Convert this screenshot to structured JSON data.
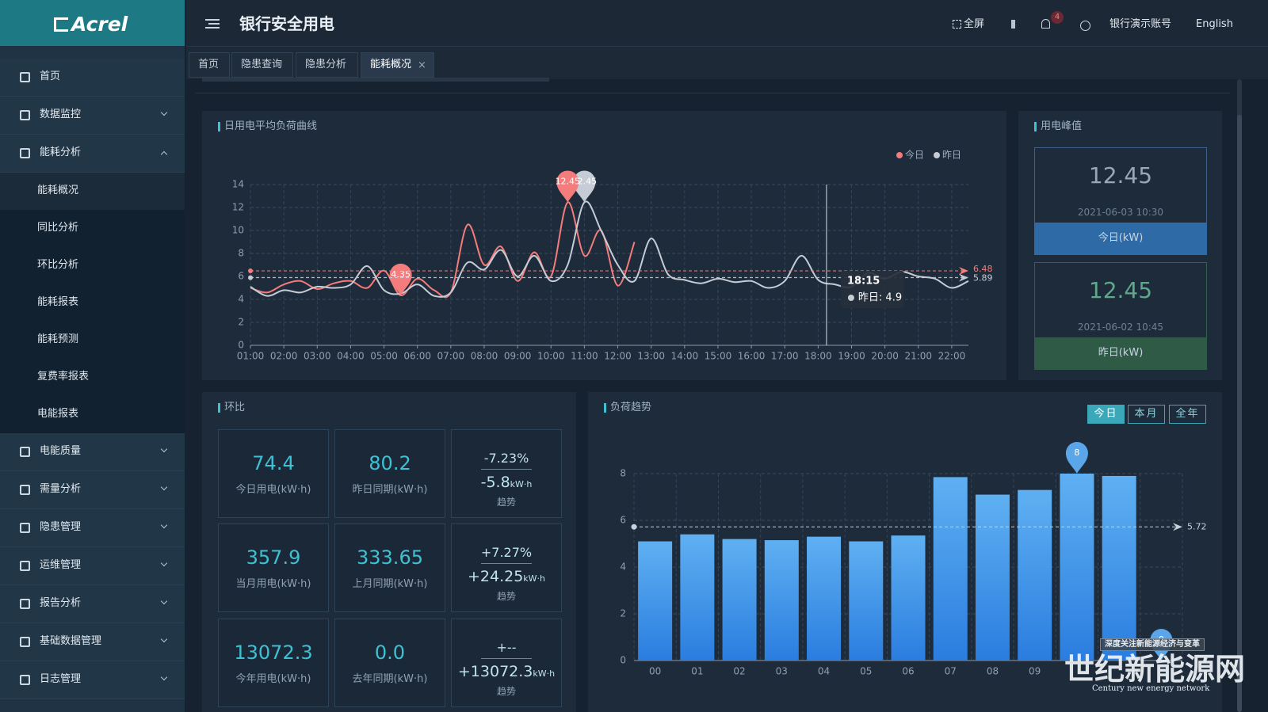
{
  "sidebar": {
    "logo": "Acrel",
    "menu": [
      {
        "label": "首页"
      },
      {
        "label": "数据监控"
      },
      {
        "label": "能耗分析",
        "children": [
          "能耗概况",
          "同比分析",
          "环比分析",
          "能耗报表",
          "能耗预测",
          "复费率报表",
          "电能报表"
        ]
      },
      {
        "label": "电能质量"
      },
      {
        "label": "需量分析"
      },
      {
        "label": "隐患管理"
      },
      {
        "label": "运维管理"
      },
      {
        "label": "报告分析"
      },
      {
        "label": "基础数据管理"
      },
      {
        "label": "日志管理"
      }
    ]
  },
  "header": {
    "title": "银行安全用电",
    "fullscreen": "全屏",
    "badge": "4",
    "account": "银行演示账号",
    "language": "English"
  },
  "tabs": [
    "首页",
    "隐患查询",
    "隐患分析",
    "能耗概况"
  ],
  "peak": {
    "title": "用电峰值",
    "items": [
      {
        "value": 12.45,
        "time": "2021-06-03 10:30",
        "label": "今日(kW)"
      },
      {
        "value": 12.45,
        "time": "2021-06-02 10:45",
        "label": "昨日(kW)"
      }
    ]
  },
  "ratio": {
    "title": "环比",
    "rows": [
      [
        {
          "value": "74.4",
          "label": "今日用电(kW·h)"
        },
        {
          "value": "80.2",
          "label": "昨日同期(kW·h)"
        },
        {
          "percent": "-7.23%",
          "diff": "-5.8",
          "unit": "kW·h",
          "label": "趋势"
        }
      ],
      [
        {
          "value": "357.9",
          "label": "当月用电(kW·h)"
        },
        {
          "value": "333.65",
          "label": "上月同期(kW·h)"
        },
        {
          "percent": "+7.27%",
          "diff": "+24.25",
          "unit": "kW·h",
          "label": "趋势"
        }
      ],
      [
        {
          "value": "13072.3",
          "label": "今年用电(kW·h)"
        },
        {
          "value": "0.0",
          "label": "去年同期(kW·h)"
        },
        {
          "percent": "+--",
          "diff": "+13072.3",
          "unit": "kW·h",
          "label": "趋势"
        }
      ]
    ]
  },
  "watermark": {
    "title": "世纪新能源网",
    "subtitle": "Century new energy network",
    "banner": "深度关注新能源经济与变革"
  },
  "chart_data": [
    {
      "type": "line",
      "title": "日用电平均负荷曲线",
      "x": [
        1,
        1.5,
        2,
        2.5,
        3,
        3.5,
        4,
        4.5,
        5,
        5.5,
        6,
        6.5,
        7,
        7.5,
        8,
        8.5,
        9,
        9.5,
        10,
        10.5,
        11,
        11.5,
        12,
        12.5,
        13,
        13.5,
        14,
        14.5,
        15,
        15.5,
        16,
        16.5,
        17,
        17.5,
        18,
        18.5,
        19,
        19.5,
        20,
        20.5,
        21,
        21.5,
        22,
        22.5
      ],
      "xlim": [
        1,
        22.5
      ],
      "xticks": [
        {
          "value": 1,
          "label": "01:00"
        },
        {
          "value": 2,
          "label": "02:00"
        },
        {
          "value": 3,
          "label": "03:00"
        },
        {
          "value": 4,
          "label": "04:00"
        },
        {
          "value": 5,
          "label": "05:00"
        },
        {
          "value": 6,
          "label": "06:00"
        },
        {
          "value": 7,
          "label": "07:00"
        },
        {
          "value": 8,
          "label": "08:00"
        },
        {
          "value": 9,
          "label": "09:00"
        },
        {
          "value": 10,
          "label": "10:00"
        },
        {
          "value": 11,
          "label": "11:00"
        },
        {
          "value": 12,
          "label": "12:00"
        },
        {
          "value": 13,
          "label": "13:00"
        },
        {
          "value": 14,
          "label": "14:00"
        },
        {
          "value": 15,
          "label": "15:00"
        },
        {
          "value": 16,
          "label": "16:00"
        },
        {
          "value": 17,
          "label": "17:00"
        },
        {
          "value": 18,
          "label": "18:00"
        },
        {
          "value": 19,
          "label": "19:00"
        },
        {
          "value": 20,
          "label": "20:00"
        },
        {
          "value": 21,
          "label": "21:00"
        },
        {
          "value": 22,
          "label": "22:00"
        }
      ],
      "ylim": [
        0,
        14
      ],
      "yticks": [
        0,
        2,
        4,
        6,
        8,
        10,
        12,
        14
      ],
      "grid": true,
      "legend": "top-right",
      "series": [
        {
          "name": "今日",
          "color": "#f47c7c",
          "average": 6.48,
          "markpoints": [
            "max",
            "min"
          ],
          "values": [
            5.0,
            4.6,
            5.3,
            5.6,
            4.9,
            5.4,
            5.6,
            5.0,
            6.5,
            4.35,
            5.8,
            4.8,
            4.6,
            10.5,
            7.0,
            8.6,
            5.6,
            8.1,
            6.0,
            12.45,
            7.8,
            10.0,
            5.2,
            9.0,
            null,
            null,
            null,
            null,
            null,
            null,
            null,
            null,
            null,
            null,
            null,
            null,
            null,
            null,
            null,
            null,
            null,
            null,
            null,
            null
          ]
        },
        {
          "name": "昨日",
          "color": "#c5ccd6",
          "average": 5.89,
          "markpoints": [
            "max"
          ],
          "values": [
            5.1,
            4.3,
            4.8,
            4.6,
            5.1,
            5.0,
            5.3,
            6.9,
            4.8,
            4.5,
            5.3,
            4.3,
            4.6,
            7.2,
            6.6,
            8.3,
            6.0,
            7.8,
            5.6,
            7.0,
            12.45,
            10.0,
            7.0,
            5.6,
            9.3,
            6.2,
            5.7,
            5.4,
            5.8,
            5.5,
            5.6,
            5.0,
            5.6,
            7.8,
            5.7,
            5.3,
            5.1,
            6.3,
            5.8,
            6.4,
            6.0,
            5.8,
            5.0,
            5.6
          ]
        }
      ],
      "tooltip": {
        "time": "18:15",
        "text": "昨日: 4.9"
      }
    },
    {
      "type": "bar",
      "title": "负荷趋势",
      "categories": [
        "00",
        "01",
        "02",
        "03",
        "04",
        "05",
        "06",
        "07",
        "08",
        "09",
        null,
        null,
        null
      ],
      "values": [
        5.1,
        5.4,
        5.2,
        5.15,
        5.3,
        5.1,
        5.35,
        7.85,
        7.1,
        7.3,
        8,
        7.9,
        0
      ],
      "color": "#3b8fe6",
      "average": 5.72,
      "markpoints": [
        "max",
        "min"
      ],
      "ylim": [
        0,
        8
      ],
      "yticks": [
        0,
        2,
        4,
        6,
        8
      ],
      "grid": true,
      "ranges": [
        "今日",
        "本月",
        "全年"
      ]
    }
  ]
}
